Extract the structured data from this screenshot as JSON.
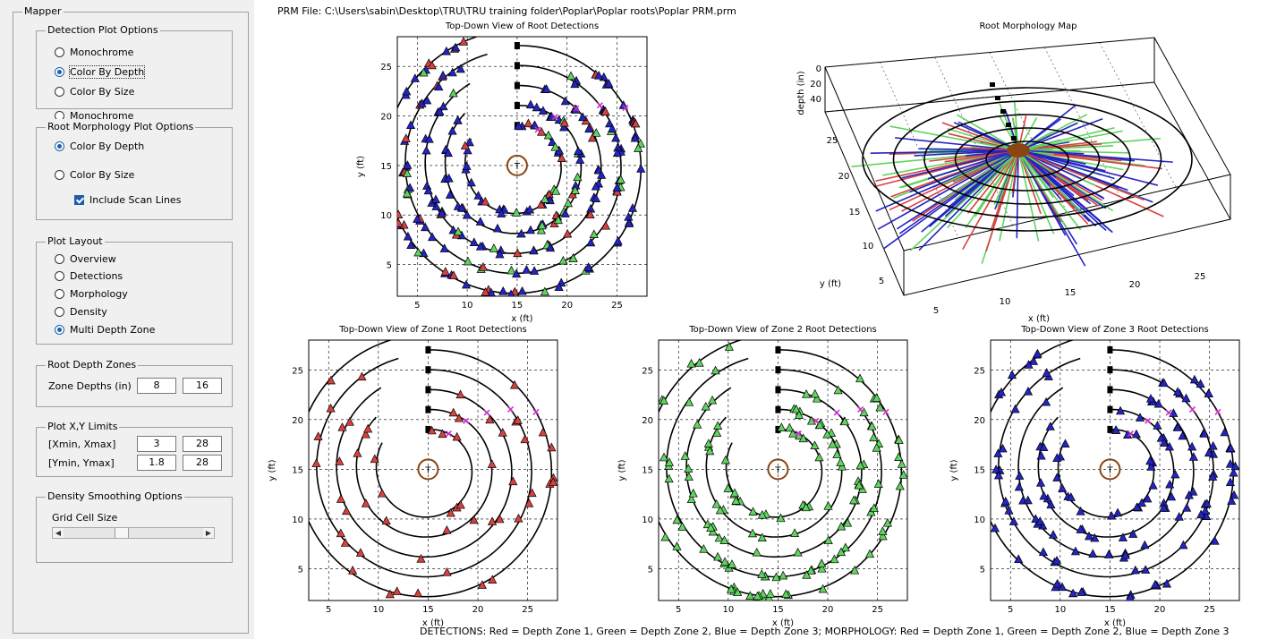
{
  "panel": {
    "title": "Mapper",
    "detection": {
      "title": "Detection Plot Options",
      "options": [
        "Monochrome",
        "Color By Depth",
        "Color By Size"
      ],
      "selected": 1,
      "hidden_label": "Monochrome"
    },
    "morphology": {
      "title": "Root Morphology Plot Options",
      "options": [
        "Color By Depth",
        "Color By Size"
      ],
      "selected": 0,
      "checkbox_label": "Include Scan Lines",
      "checkbox_checked": true
    },
    "layout": {
      "title": "Plot Layout",
      "options": [
        "Overview",
        "Detections",
        "Morphology",
        "Density",
        "Multi Depth Zone"
      ],
      "selected": 4
    },
    "zones": {
      "title": "Root Depth Zones",
      "label": "Zone Depths (in)",
      "v1": "8",
      "v2": "16"
    },
    "limits": {
      "title": "Plot X,Y Limits",
      "xlabel": "[Xmin, Xmax]",
      "xmin": "3",
      "xmax": "28",
      "ylabel": "[Ymin, Ymax]",
      "ymin": "1.8",
      "ymax": "28"
    },
    "density": {
      "title": "Density Smoothing Options",
      "label": "Grid Cell Size",
      "left_arrow": "◀",
      "right_arrow": "▶",
      "slider_value": 0.4
    }
  },
  "prm_file": "PRM File: C:\\Users\\sabin\\Desktop\\TRU\\TRU training folder\\Poplar\\Poplar roots\\Poplar PRM.prm",
  "footer": "DETECTIONS: Red = Depth Zone 1, Green = Depth Zone 2, Blue = Depth Zone 3; MORPHOLOGY: Red = Depth Zone 1, Green = Depth Zone 2, Blue = Depth Zone 3",
  "colors": {
    "zone1": "#d94040",
    "zone2": "#5fd45f",
    "zone3": "#2424c4",
    "trunk": "#8b4513",
    "marker": "#cc33cc"
  },
  "chart_data": [
    {
      "type": "scatter",
      "title": "Top-Down View of Root Detections",
      "xlabel": "x (ft)",
      "ylabel": "y (ft)",
      "xlim": [
        3,
        28
      ],
      "ylim": [
        1.8,
        28
      ],
      "xticks": [
        5,
        10,
        15,
        20,
        25
      ],
      "yticks": [
        5,
        10,
        15,
        20,
        25
      ],
      "center": [
        15,
        15
      ],
      "center_label": "T",
      "spiral_radii": [
        4,
        6,
        8,
        10,
        12
      ],
      "spiral_start_y": [
        19,
        21,
        23,
        25,
        27
      ],
      "zone": "all"
    },
    {
      "type": "scatter",
      "title": "Top-Down View of Zone 1 Root Detections",
      "xlabel": "x (ft)",
      "ylabel": "y (ft)",
      "xlim": [
        3,
        28
      ],
      "ylim": [
        1.8,
        28
      ],
      "xticks": [
        5,
        10,
        15,
        20,
        25
      ],
      "yticks": [
        5,
        10,
        15,
        20,
        25
      ],
      "center": [
        15,
        15
      ],
      "center_label": "T",
      "zone": "1"
    },
    {
      "type": "scatter",
      "title": "Top-Down View of Zone 2 Root Detections",
      "xlabel": "x (ft)",
      "ylabel": "y (ft)",
      "xlim": [
        3,
        28
      ],
      "ylim": [
        1.8,
        28
      ],
      "xticks": [
        5,
        10,
        15,
        20,
        25
      ],
      "yticks": [
        5,
        10,
        15,
        20,
        25
      ],
      "center": [
        15,
        15
      ],
      "center_label": "T",
      "zone": "2"
    },
    {
      "type": "scatter",
      "title": "Top-Down View of Zone 3 Root Detections",
      "xlabel": "x (ft)",
      "ylabel": "y (ft)",
      "xlim": [
        3,
        28
      ],
      "ylim": [
        1.8,
        28
      ],
      "xticks": [
        5,
        10,
        15,
        20,
        25
      ],
      "yticks": [
        5,
        10,
        15,
        20,
        25
      ],
      "center": [
        15,
        15
      ],
      "center_label": "T",
      "zone": "3"
    },
    {
      "type": "other",
      "title": "Root Morphology Map",
      "xlabel": "x (ft)",
      "ylabel": "y (ft)",
      "zlabel": "depth (in)",
      "xticks": [
        5,
        10,
        15,
        20,
        25
      ],
      "yticks": [
        5,
        10,
        15,
        20,
        25
      ],
      "zticks": [
        0,
        20,
        40
      ]
    }
  ]
}
